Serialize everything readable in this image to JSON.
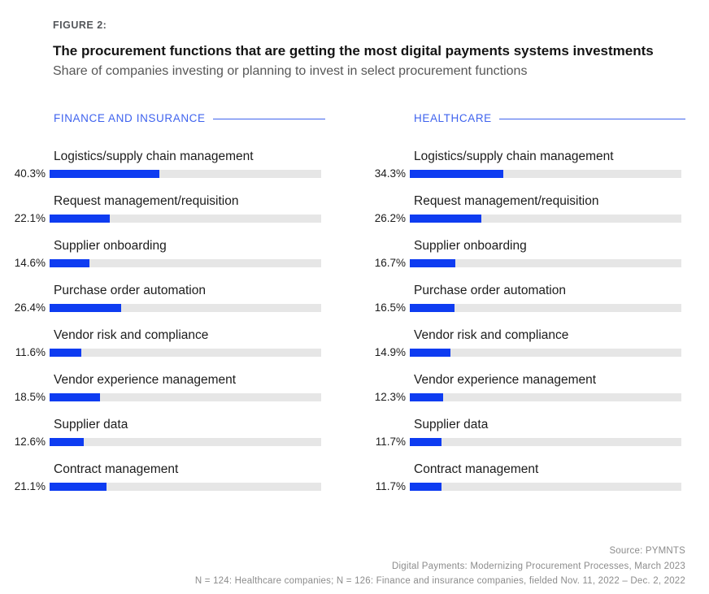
{
  "header": {
    "figure_label": "FIGURE 2:",
    "title": "The procurement functions that are getting the most digital payments systems investments",
    "subtitle": "Share of companies investing or planning to invest in select procurement functions"
  },
  "columns": [
    {
      "label": "FINANCE AND INSURANCE"
    },
    {
      "label": "HEALTHCARE"
    }
  ],
  "chart_data": {
    "type": "bar",
    "orientation": "horizontal",
    "unit": "%",
    "value_range": [
      0,
      100
    ],
    "grid": false,
    "legend_position": "column-headers",
    "title": "The procurement functions that are getting the most digital payments systems investments",
    "subtitle": "Share of companies investing or planning to invest in select procurement functions",
    "categories": [
      "Logistics/supply chain management",
      "Request management/requisition",
      "Supplier onboarding",
      "Purchase order automation",
      "Vendor risk and compliance",
      "Vendor experience management",
      "Supplier data",
      "Contract management"
    ],
    "series": [
      {
        "name": "Finance and insurance",
        "values": [
          40.3,
          22.1,
          14.6,
          26.4,
          11.6,
          18.5,
          12.6,
          21.1
        ]
      },
      {
        "name": "Healthcare",
        "values": [
          34.3,
          26.2,
          16.7,
          16.5,
          14.9,
          12.3,
          11.7,
          11.7
        ]
      }
    ]
  },
  "footer": {
    "lines": [
      "Source: PYMNTS",
      "Digital Payments: Modernizing Procurement Processes, March 2023",
      "N = 124: Healthcare companies; N = 126: Finance and insurance companies, fielded Nov. 11, 2022 – Dec. 2, 2022"
    ]
  },
  "colors": {
    "bar_blue": "#0e3cf1",
    "header_blue": "#3f63ee",
    "track_gray": "#e6e6e6",
    "title_black": "#141414",
    "subtitle_gray": "#575757",
    "figure_label_gray": "#53565a",
    "footer_gray": "#8c8c8c"
  }
}
